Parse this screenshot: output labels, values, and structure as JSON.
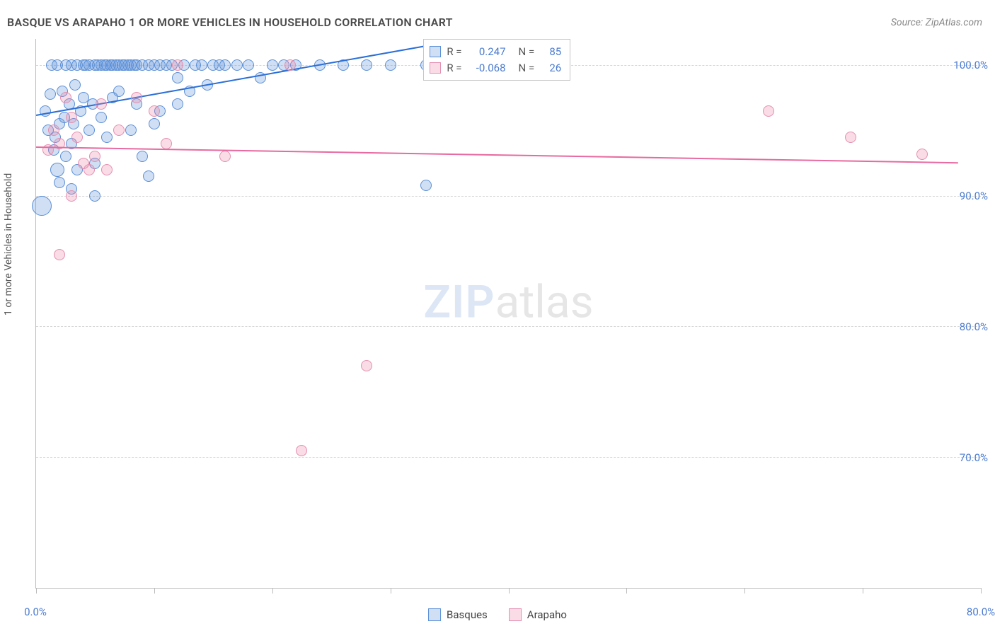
{
  "title": "BASQUE VS ARAPAHO 1 OR MORE VEHICLES IN HOUSEHOLD CORRELATION CHART",
  "source": "Source: ZipAtlas.com",
  "ylabel": "1 or more Vehicles in Household",
  "watermark": {
    "bold": "ZIP",
    "rest": "atlas"
  },
  "chart": {
    "type": "scatter",
    "xlim": [
      0,
      80
    ],
    "ylim": [
      60,
      102
    ],
    "xticks": [
      0,
      10,
      20,
      30,
      40,
      50,
      60,
      70,
      80
    ],
    "xtick_labels": {
      "0": "0.0%",
      "80": "80.0%"
    },
    "yticks": [
      70,
      80,
      90,
      100
    ],
    "ytick_labels": {
      "70": "70.0%",
      "80": "80.0%",
      "90": "90.0%",
      "100": "100.0%"
    },
    "grid_color": "#d5d5d5",
    "axis_color": "#bbbbbb",
    "tick_label_color": "#4a7bd0",
    "background": "#ffffff"
  },
  "series": {
    "basques": {
      "label": "Basques",
      "fill": "rgba(100,150,220,0.30)",
      "stroke": "#5a8fd6",
      "line_color": "#2a6fd6",
      "marker_radius": 8,
      "R": "0.247",
      "N": "85",
      "regression": {
        "x1": 0,
        "y1": 96.2,
        "x2": 33,
        "y2": 101.5
      },
      "points": [
        [
          0.5,
          89.2,
          14
        ],
        [
          0.8,
          96.5,
          8
        ],
        [
          1.0,
          95.0,
          8
        ],
        [
          1.2,
          97.8,
          8
        ],
        [
          1.3,
          100.0,
          8
        ],
        [
          1.5,
          93.5,
          8
        ],
        [
          1.6,
          94.5,
          8
        ],
        [
          1.8,
          92.0,
          10
        ],
        [
          1.8,
          100.0,
          8
        ],
        [
          2.0,
          95.5,
          8
        ],
        [
          2.0,
          91.0,
          8
        ],
        [
          2.2,
          98.0,
          8
        ],
        [
          2.4,
          96.0,
          8
        ],
        [
          2.5,
          100.0,
          8
        ],
        [
          2.5,
          93.0,
          8
        ],
        [
          2.8,
          97.0,
          8
        ],
        [
          3.0,
          94.0,
          8
        ],
        [
          3.0,
          100.0,
          8
        ],
        [
          3.2,
          95.5,
          8
        ],
        [
          3.3,
          98.5,
          8
        ],
        [
          3.5,
          100.0,
          8
        ],
        [
          3.5,
          92.0,
          8
        ],
        [
          3.8,
          96.5,
          8
        ],
        [
          4.0,
          100.0,
          8
        ],
        [
          4.0,
          97.5,
          8
        ],
        [
          4.2,
          100.0,
          8
        ],
        [
          4.5,
          95.0,
          8
        ],
        [
          4.5,
          100.0,
          8
        ],
        [
          4.8,
          97.0,
          8
        ],
        [
          5.0,
          100.0,
          8
        ],
        [
          5.0,
          92.5,
          8
        ],
        [
          5.2,
          100.0,
          8
        ],
        [
          5.5,
          96.0,
          8
        ],
        [
          5.5,
          100.0,
          8
        ],
        [
          5.8,
          100.0,
          8
        ],
        [
          6.0,
          100.0,
          8
        ],
        [
          6.0,
          94.5,
          8
        ],
        [
          6.3,
          100.0,
          8
        ],
        [
          6.5,
          97.5,
          8
        ],
        [
          6.5,
          100.0,
          8
        ],
        [
          6.8,
          100.0,
          8
        ],
        [
          7.0,
          100.0,
          8
        ],
        [
          7.0,
          98.0,
          8
        ],
        [
          7.3,
          100.0,
          8
        ],
        [
          7.5,
          100.0,
          8
        ],
        [
          7.8,
          100.0,
          8
        ],
        [
          8.0,
          100.0,
          8
        ],
        [
          8.0,
          95.0,
          8
        ],
        [
          8.3,
          100.0,
          8
        ],
        [
          8.5,
          100.0,
          8
        ],
        [
          8.5,
          97.0,
          8
        ],
        [
          9.0,
          100.0,
          8
        ],
        [
          9.0,
          93.0,
          8
        ],
        [
          9.5,
          100.0,
          8
        ],
        [
          9.5,
          91.5,
          8
        ],
        [
          10.0,
          100.0,
          8
        ],
        [
          10.0,
          95.5,
          8
        ],
        [
          10.5,
          100.0,
          8
        ],
        [
          10.5,
          96.5,
          8
        ],
        [
          11.0,
          100.0,
          8
        ],
        [
          11.5,
          100.0,
          8
        ],
        [
          12.0,
          99.0,
          8
        ],
        [
          12.0,
          97.0,
          8
        ],
        [
          12.5,
          100.0,
          8
        ],
        [
          13.0,
          98.0,
          8
        ],
        [
          13.5,
          100.0,
          8
        ],
        [
          14.0,
          100.0,
          8
        ],
        [
          14.5,
          98.5,
          8
        ],
        [
          15.0,
          100.0,
          8
        ],
        [
          15.5,
          100.0,
          8
        ],
        [
          16.0,
          100.0,
          8
        ],
        [
          17.0,
          100.0,
          8
        ],
        [
          18.0,
          100.0,
          8
        ],
        [
          19.0,
          99.0,
          8
        ],
        [
          20.0,
          100.0,
          8
        ],
        [
          21.0,
          100.0,
          8
        ],
        [
          22.0,
          100.0,
          8
        ],
        [
          24.0,
          100.0,
          8
        ],
        [
          26.0,
          100.0,
          8
        ],
        [
          28.0,
          100.0,
          8
        ],
        [
          30.0,
          100.0,
          8
        ],
        [
          33.0,
          100.0,
          8
        ],
        [
          33.0,
          90.8,
          8
        ],
        [
          5.0,
          90.0,
          8
        ],
        [
          3.0,
          90.5,
          8
        ]
      ]
    },
    "arapaho": {
      "label": "Arapaho",
      "fill": "rgba(235,130,165,0.28)",
      "stroke": "#e48fb0",
      "line_color": "#e76aa0",
      "marker_radius": 8,
      "R": "-0.068",
      "N": "26",
      "regression": {
        "x1": 0,
        "y1": 93.8,
        "x2": 78,
        "y2": 92.6
      },
      "points": [
        [
          1.0,
          93.5,
          8
        ],
        [
          1.5,
          95.0,
          8
        ],
        [
          2.0,
          94.0,
          8
        ],
        [
          2.0,
          85.5,
          8
        ],
        [
          2.5,
          97.5,
          8
        ],
        [
          3.0,
          96.0,
          8
        ],
        [
          3.0,
          90.0,
          8
        ],
        [
          3.5,
          94.5,
          8
        ],
        [
          4.0,
          92.5,
          8
        ],
        [
          4.5,
          92.0,
          8
        ],
        [
          5.0,
          93.0,
          8
        ],
        [
          5.5,
          97.0,
          8
        ],
        [
          6.0,
          92.0,
          8
        ],
        [
          7.0,
          95.0,
          8
        ],
        [
          8.5,
          97.5,
          8
        ],
        [
          10.0,
          96.5,
          8
        ],
        [
          11.0,
          94.0,
          8
        ],
        [
          12.0,
          100.0,
          8
        ],
        [
          16.0,
          93.0,
          8
        ],
        [
          21.5,
          100.0,
          8
        ],
        [
          22.5,
          70.5,
          8
        ],
        [
          28.0,
          77.0,
          8
        ],
        [
          44.0,
          100.0,
          8
        ],
        [
          62.0,
          96.5,
          8
        ],
        [
          69.0,
          94.5,
          8
        ],
        [
          75.0,
          93.2,
          8
        ]
      ]
    }
  },
  "stats_box": {
    "left_pct": 41,
    "top_pct": 0
  },
  "legend": [
    "basques",
    "arapaho"
  ]
}
